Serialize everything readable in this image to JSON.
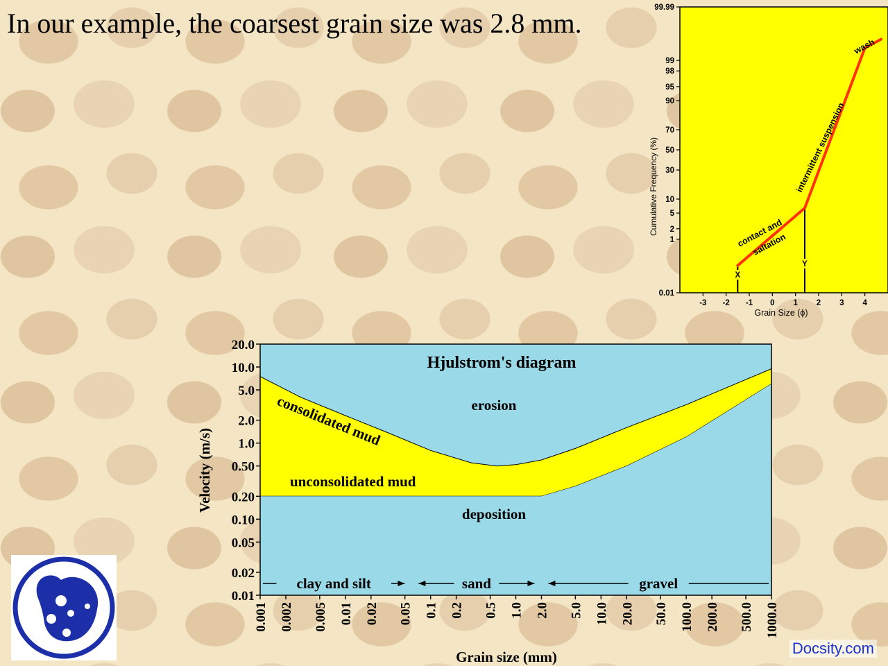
{
  "headline": "In our example, the coarsest grain size was 2.8 mm.",
  "credit": "Docsity.com",
  "colors": {
    "yellow": "#ffff00",
    "red_line": "#ff3300",
    "water_blue": "#9ad9e8",
    "mud_yellow": "#ffff00",
    "logo_blue": "#1c2fa8"
  },
  "chart_data": [
    {
      "type": "line",
      "xlabel": "Grain Size (ϕ)",
      "ylabel": "Cumulative Frequency (%)",
      "x_ticks": [
        "-3",
        "-2",
        "-1",
        "0",
        "1",
        "2",
        "3",
        "4"
      ],
      "y_ticks": [
        "99.99",
        "99",
        "98",
        "95",
        "90",
        "70",
        "50",
        "30",
        "10",
        "5",
        "2",
        "1",
        "0.01"
      ],
      "y_scale": "probability",
      "xlim": [
        -4,
        5
      ],
      "series": [
        {
          "x": [
            -1.5,
            1.4,
            4.0,
            4.7
          ],
          "y": [
            0.13,
            6.5,
            99.6,
            99.8
          ]
        }
      ],
      "segment_labels": [
        "contact and",
        "saltation",
        "intermittent suspension",
        "wash"
      ],
      "markers": [
        {
          "label": "X",
          "x": -1.5
        },
        {
          "label": "Y",
          "x": 1.4
        }
      ]
    },
    {
      "type": "area",
      "title": "Hjulstrom's diagram",
      "xlabel": "Grain size (mm)",
      "ylabel": "Velocity (m/s)",
      "x_scale": "log",
      "y_scale": "log",
      "xlim": [
        0.001,
        1000.0
      ],
      "ylim": [
        0.01,
        20.0
      ],
      "x_ticks": [
        "0.001",
        "0.002",
        "0.005",
        "0.01",
        "0.02",
        "0.05",
        "0.1",
        "0.2",
        "0.5",
        "1.0",
        "2.0",
        "5.0",
        "10.0",
        "20.0",
        "50.0",
        "100.0",
        "200.0",
        "500.0",
        "1000.0"
      ],
      "y_ticks": [
        "20.0",
        "10.0",
        "5.0",
        "2.0",
        "1.0",
        "0.50",
        "0.20",
        "0.10",
        "0.05",
        "0.02",
        "0.01"
      ],
      "series": [
        {
          "name": "consolidated mud",
          "x": [
            0.001,
            0.003,
            0.01,
            0.03,
            0.1,
            0.3,
            0.6,
            1.0,
            2.0,
            5.0,
            20.0,
            100.0,
            1000.0
          ],
          "y": [
            7.5,
            4.0,
            2.3,
            1.4,
            0.8,
            0.55,
            0.5,
            0.52,
            0.6,
            0.85,
            1.6,
            3.2,
            9.5
          ]
        },
        {
          "name": "unconsolidated mud",
          "x": [
            0.001,
            0.01,
            0.1,
            1.0,
            2.0,
            5.0,
            20.0,
            100.0,
            1000.0
          ],
          "y": [
            0.2,
            0.2,
            0.2,
            0.2,
            0.2,
            0.27,
            0.5,
            1.2,
            6.0
          ]
        }
      ],
      "regions": [
        "erosion",
        "consolidated mud",
        "unconsolidated mud",
        "deposition"
      ],
      "size_classes": [
        {
          "label": "clay and silt",
          "from": 0.001,
          "to": 0.06
        },
        {
          "label": "sand",
          "from": 0.06,
          "to": 2.0
        },
        {
          "label": "gravel",
          "from": 2.0,
          "to": 1000.0
        }
      ]
    }
  ]
}
